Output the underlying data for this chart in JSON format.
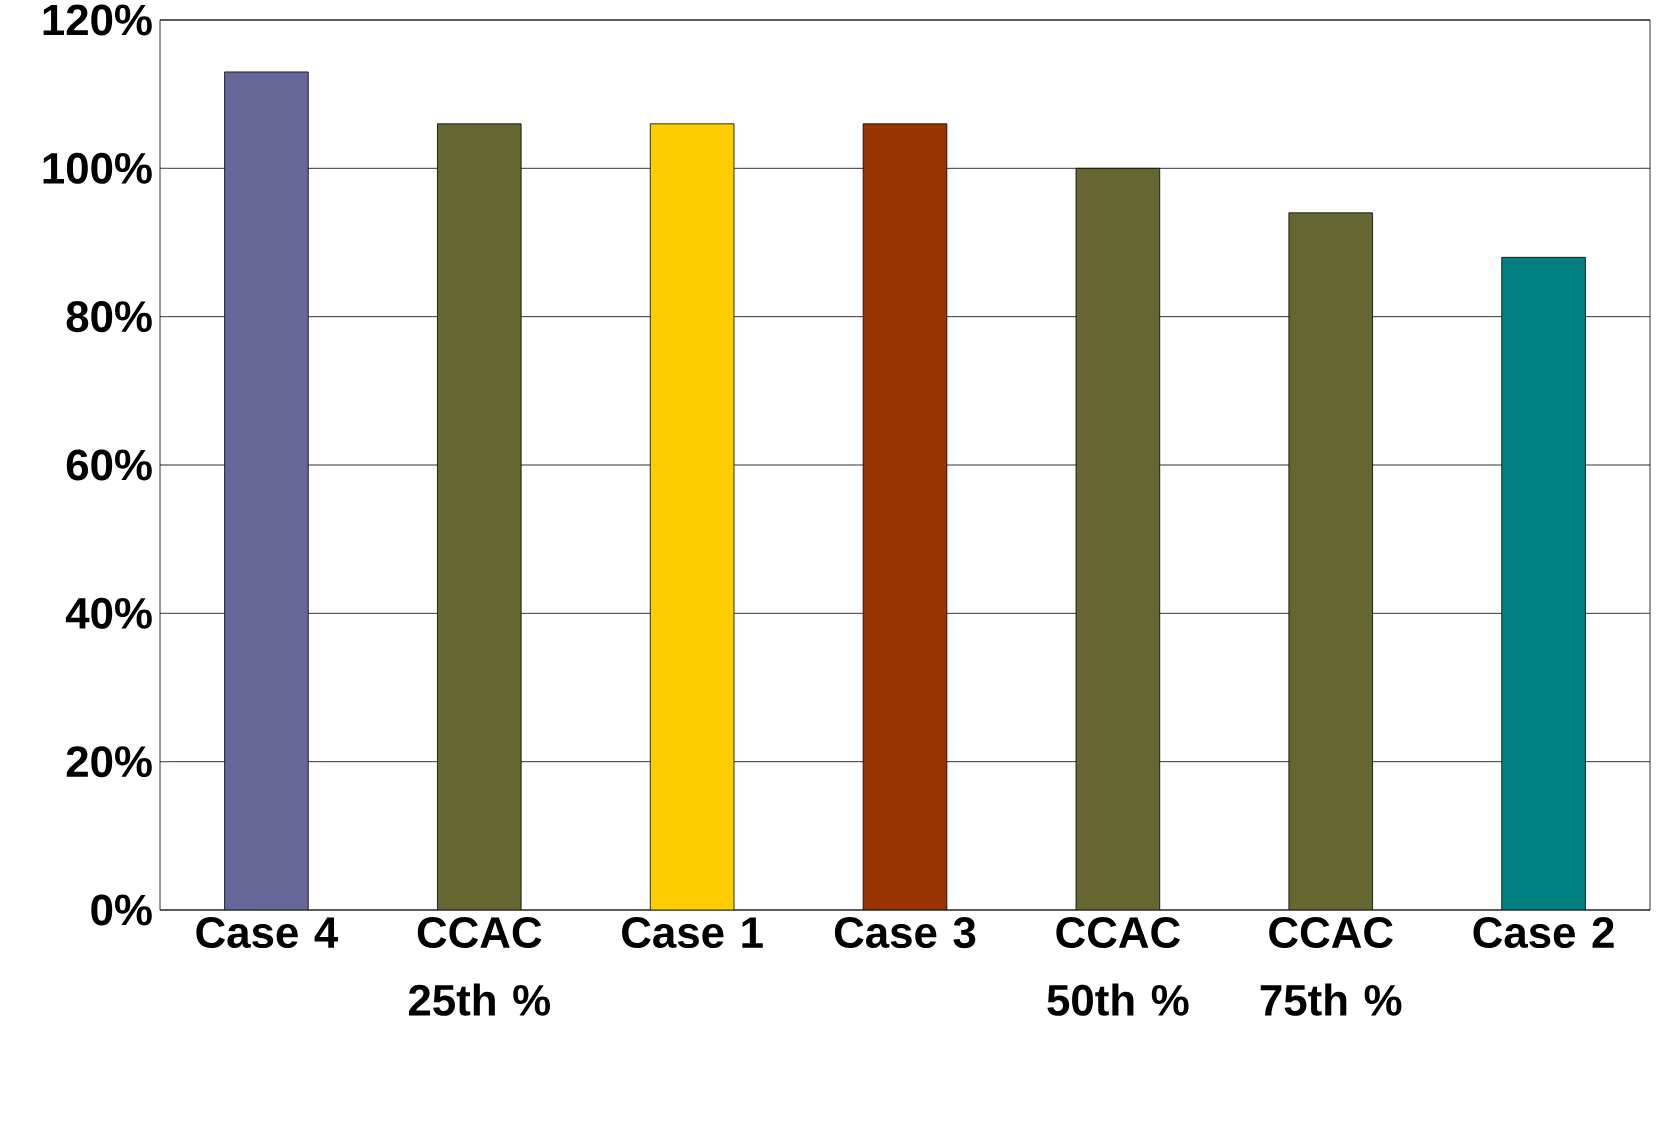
{
  "chart_data": {
    "type": "bar",
    "categories": [
      "Case 4",
      "CCAC 25th %",
      "Case 1",
      "Case 3",
      "CCAC 50th %",
      "CCAC 75th %",
      "Case 2"
    ],
    "values": [
      113,
      106,
      106,
      106,
      100,
      94,
      88
    ],
    "colors": [
      "#666699",
      "#666633",
      "#ffcc00",
      "#993300",
      "#666633",
      "#666633",
      "#008080"
    ],
    "ylim": [
      0,
      120
    ],
    "yticks": [
      {
        "value": 0,
        "label": "0%"
      },
      {
        "value": 20,
        "label": "20%"
      },
      {
        "value": 40,
        "label": "40%"
      },
      {
        "value": 60,
        "label": "60%"
      },
      {
        "value": 80,
        "label": "80%"
      },
      {
        "value": 100,
        "label": "100%"
      },
      {
        "value": 120,
        "label": "120%"
      }
    ],
    "grid": "y"
  }
}
